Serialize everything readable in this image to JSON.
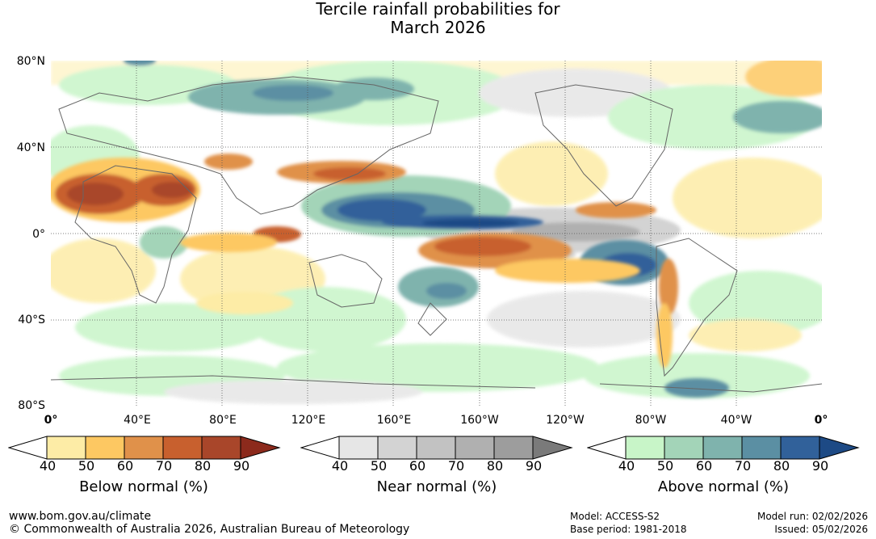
{
  "title": "Tercile rainfall probabilities for\nMarch 2026",
  "lat_labels": [
    "80°N",
    "40°N",
    "0°",
    "40°S",
    "80°S"
  ],
  "lon_labels": [
    "0°",
    "40°E",
    "80°E",
    "120°E",
    "160°E",
    "160°W",
    "120°W",
    "80°W",
    "40°W",
    "0°"
  ],
  "colorbars": [
    {
      "label": "Below normal (%)",
      "ticks": [
        "40",
        "50",
        "60",
        "70",
        "80",
        "90"
      ],
      "colors": [
        "#ffffff",
        "#fdeca6",
        "#fdc862",
        "#e0914a",
        "#c8602e",
        "#a9462a",
        "#8c2a1c"
      ]
    },
    {
      "label": "Near normal (%)",
      "ticks": [
        "40",
        "50",
        "60",
        "70",
        "80",
        "90"
      ],
      "colors": [
        "#ffffff",
        "#e6e6e6",
        "#d3d3d3",
        "#c2c2c2",
        "#b0b0b0",
        "#9d9d9d",
        "#7a7a7a"
      ]
    },
    {
      "label": "Above normal (%)",
      "ticks": [
        "40",
        "50",
        "60",
        "70",
        "80",
        "90"
      ],
      "colors": [
        "#ffffff",
        "#c8f5c8",
        "#a3d4b8",
        "#7fb3ad",
        "#5b8fa3",
        "#31619a",
        "#1d4a85"
      ]
    }
  ],
  "footer": {
    "website": "www.bom.gov.au/climate",
    "copyright": "© Commonwealth of Australia 2026, Australian Bureau of Meteorology",
    "model": "Model: ACCESS-S2",
    "base_period": "Base period: 1981-2018",
    "model_run": "Model run: 02/02/2026",
    "issued": "Issued: 05/02/2026"
  }
}
